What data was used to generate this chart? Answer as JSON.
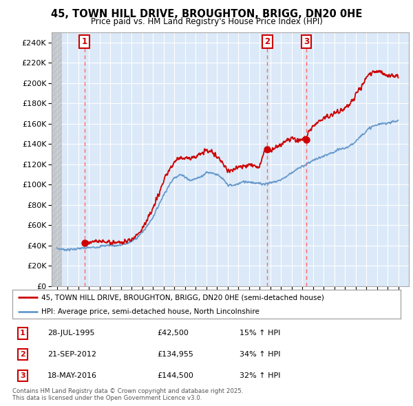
{
  "title": "45, TOWN HILL DRIVE, BROUGHTON, BRIGG, DN20 0HE",
  "subtitle": "Price paid vs. HM Land Registry's House Price Index (HPI)",
  "ylim": [
    0,
    250000
  ],
  "yticks": [
    0,
    20000,
    40000,
    60000,
    80000,
    100000,
    120000,
    140000,
    160000,
    180000,
    200000,
    220000,
    240000
  ],
  "ytick_labels": [
    "£0",
    "£20K",
    "£40K",
    "£60K",
    "£80K",
    "£100K",
    "£120K",
    "£140K",
    "£160K",
    "£180K",
    "£200K",
    "£220K",
    "£240K"
  ],
  "xlim_start": 1992.5,
  "xlim_end": 2026.0,
  "background_color": "#dce9f8",
  "grid_color": "#ffffff",
  "red_line_color": "#cc0000",
  "blue_line_color": "#6699cc",
  "sale_vline_color": "#ff6666",
  "sale_box_color": "#cc0000",
  "sales": [
    {
      "year": 1995.58,
      "price": 42500,
      "label": "1"
    },
    {
      "year": 2012.72,
      "price": 134955,
      "label": "2"
    },
    {
      "year": 2016.38,
      "price": 144500,
      "label": "3"
    }
  ],
  "legend_line1": "45, TOWN HILL DRIVE, BROUGHTON, BRIGG, DN20 0HE (semi-detached house)",
  "legend_line2": "HPI: Average price, semi-detached house, North Lincolnshire",
  "footer": "Contains HM Land Registry data © Crown copyright and database right 2025.\nThis data is licensed under the Open Government Licence v3.0.",
  "table_rows": [
    [
      "1",
      "28-JUL-1995",
      "£42,500",
      "15% ↑ HPI"
    ],
    [
      "2",
      "21-SEP-2012",
      "£134,955",
      "34% ↑ HPI"
    ],
    [
      "3",
      "18-MAY-2016",
      "£144,500",
      "32% ↑ HPI"
    ]
  ],
  "hpi_curve": {
    "years": [
      1993.0,
      1993.5,
      1994.0,
      1994.5,
      1995.0,
      1995.5,
      1996.0,
      1996.5,
      1997.0,
      1997.5,
      1998.0,
      1998.5,
      1999.0,
      1999.5,
      2000.0,
      2000.5,
      2001.0,
      2001.5,
      2002.0,
      2002.5,
      2003.0,
      2003.5,
      2004.0,
      2004.5,
      2005.0,
      2005.5,
      2006.0,
      2006.5,
      2007.0,
      2007.5,
      2008.0,
      2008.5,
      2009.0,
      2009.5,
      2010.0,
      2010.5,
      2011.0,
      2011.5,
      2012.0,
      2012.5,
      2013.0,
      2013.5,
      2014.0,
      2014.5,
      2015.0,
      2015.5,
      2016.0,
      2016.5,
      2017.0,
      2017.5,
      2018.0,
      2018.5,
      2019.0,
      2019.5,
      2020.0,
      2020.5,
      2021.0,
      2021.5,
      2022.0,
      2022.5,
      2023.0,
      2023.5,
      2024.0,
      2024.5,
      2025.0
    ],
    "prices": [
      37000,
      36500,
      36000,
      36500,
      37000,
      37500,
      38000,
      38500,
      39000,
      40000,
      40500,
      40000,
      40500,
      42000,
      44000,
      48000,
      53000,
      60000,
      68000,
      79000,
      90000,
      99000,
      107000,
      110000,
      108000,
      104000,
      106000,
      108000,
      112000,
      112000,
      110000,
      106000,
      100000,
      99000,
      101000,
      103000,
      103000,
      102000,
      101000,
      101000,
      102000,
      103000,
      105000,
      108000,
      112000,
      115000,
      118000,
      121000,
      124000,
      126000,
      128000,
      130000,
      132000,
      135000,
      136000,
      138000,
      143000,
      148000,
      153000,
      157000,
      159000,
      160000,
      161000,
      162000,
      163000
    ]
  },
  "red_curve": {
    "years": [
      1995.5,
      1996.0,
      1996.5,
      1997.0,
      1997.5,
      1998.0,
      1998.5,
      1999.0,
      1999.5,
      2000.0,
      2000.5,
      2001.0,
      2001.5,
      2002.0,
      2002.5,
      2003.0,
      2003.5,
      2004.0,
      2004.5,
      2005.0,
      2005.5,
      2006.0,
      2006.5,
      2007.0,
      2007.5,
      2008.0,
      2008.5,
      2009.0,
      2009.5,
      2010.0,
      2010.5,
      2011.0,
      2011.5,
      2012.0,
      2012.5,
      2013.0,
      2013.5,
      2014.0,
      2014.5,
      2015.0,
      2015.5,
      2016.0,
      2016.5,
      2017.0,
      2017.5,
      2018.0,
      2018.5,
      2019.0,
      2019.5,
      2020.0,
      2020.5,
      2021.0,
      2021.5,
      2022.0,
      2022.5,
      2023.0,
      2023.5,
      2024.0,
      2024.5,
      2025.0
    ],
    "prices": [
      42500,
      43000,
      43500,
      44000,
      44000,
      43500,
      43000,
      43500,
      44000,
      46000,
      51000,
      57000,
      66000,
      76000,
      90000,
      103000,
      114000,
      122000,
      127000,
      127000,
      126000,
      128000,
      130000,
      134000,
      132000,
      128000,
      122000,
      115000,
      114000,
      117000,
      119000,
      120000,
      119000,
      118000,
      135000,
      133000,
      137000,
      140000,
      143000,
      146000,
      143000,
      145000,
      150000,
      158000,
      162000,
      165000,
      168000,
      170000,
      173000,
      176000,
      180000,
      188000,
      196000,
      205000,
      210000,
      212000,
      210000,
      207000,
      208000,
      207000
    ]
  }
}
